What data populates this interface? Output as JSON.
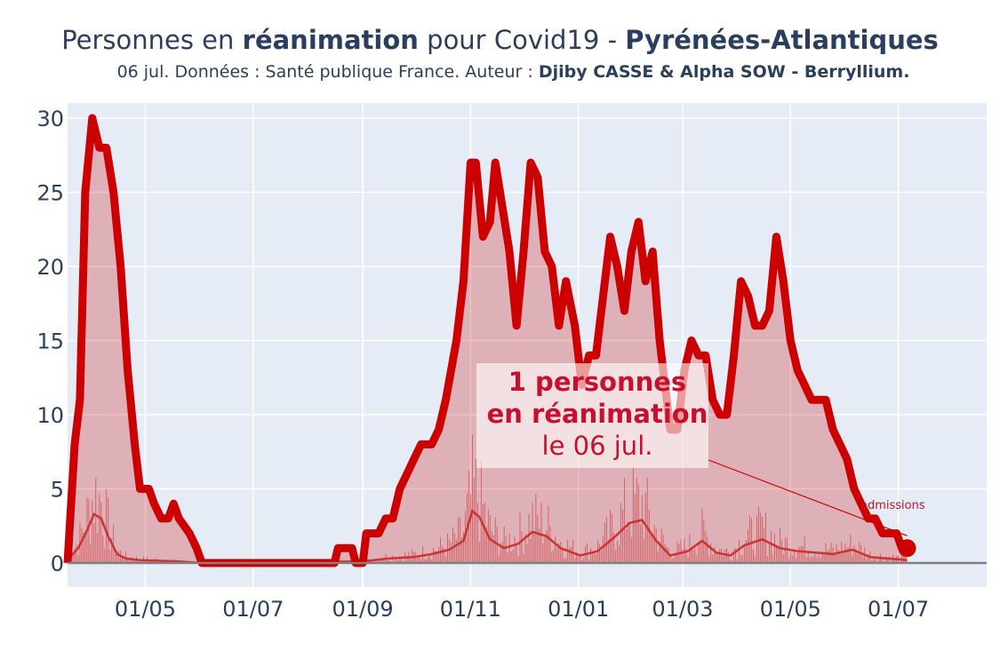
{
  "title": {
    "pre": "Personnes en ",
    "bold1": "réanimation",
    "mid": " pour Covid19 - ",
    "bold2": "Pyrénées-Atlantiques"
  },
  "subtitle": {
    "pre": "06 jul. Données : Santé publique France. Auteur : ",
    "bold": "Djiby CASSE & Alpha SOW - Berryllium."
  },
  "annotation": {
    "line1": "1 personnes",
    "line2": "en réanimation",
    "line3": "le 06 jul.",
    "admissions_label": "admissions"
  },
  "colors": {
    "plot_bg": "#e5ecf6",
    "line": "#cc0000",
    "fill": "rgba(204,0,0,0.25)",
    "admissions": "#cc3333",
    "grid": "#ffffff"
  },
  "chart_data": {
    "type": "area",
    "title": "Personnes en réanimation pour Covid19 - Pyrénées-Atlantiques",
    "xlabel": "",
    "ylabel": "",
    "ylim": [
      0,
      31
    ],
    "xlim": [
      "2020-03-18",
      "2021-08-20"
    ],
    "ytick_labels": [
      "0",
      "5",
      "10",
      "15",
      "20",
      "25",
      "30"
    ],
    "xtick_labels": [
      "01/05",
      "01/07",
      "01/09",
      "01/11",
      "01/01",
      "01/03",
      "01/05",
      "01/07"
    ],
    "xtick_dates": [
      "2020-05-01",
      "2020-07-01",
      "2020-09-01",
      "2020-11-01",
      "2021-01-01",
      "2021-03-01",
      "2021-05-01",
      "2021-07-01"
    ],
    "series": [
      {
        "name": "réanimation",
        "points": [
          [
            "2020-03-18",
            0
          ],
          [
            "2020-03-22",
            8
          ],
          [
            "2020-03-25",
            11
          ],
          [
            "2020-03-28",
            25
          ],
          [
            "2020-04-01",
            30
          ],
          [
            "2020-04-05",
            28
          ],
          [
            "2020-04-09",
            28
          ],
          [
            "2020-04-13",
            25
          ],
          [
            "2020-04-17",
            20
          ],
          [
            "2020-04-21",
            13
          ],
          [
            "2020-04-25",
            8
          ],
          [
            "2020-04-28",
            5
          ],
          [
            "2020-05-03",
            5
          ],
          [
            "2020-05-06",
            4
          ],
          [
            "2020-05-10",
            3
          ],
          [
            "2020-05-14",
            3
          ],
          [
            "2020-05-17",
            4
          ],
          [
            "2020-05-20",
            3
          ],
          [
            "2020-05-26",
            2
          ],
          [
            "2020-05-30",
            1
          ],
          [
            "2020-06-02",
            0
          ],
          [
            "2020-08-16",
            0
          ],
          [
            "2020-08-18",
            1
          ],
          [
            "2020-08-26",
            1
          ],
          [
            "2020-08-28",
            0
          ],
          [
            "2020-09-01",
            0
          ],
          [
            "2020-09-03",
            2
          ],
          [
            "2020-09-10",
            2
          ],
          [
            "2020-09-14",
            3
          ],
          [
            "2020-09-18",
            3
          ],
          [
            "2020-09-22",
            5
          ],
          [
            "2020-09-26",
            6
          ],
          [
            "2020-09-30",
            7
          ],
          [
            "2020-10-04",
            8
          ],
          [
            "2020-10-10",
            8
          ],
          [
            "2020-10-14",
            9
          ],
          [
            "2020-10-18",
            11
          ],
          [
            "2020-10-21",
            13
          ],
          [
            "2020-10-24",
            15
          ],
          [
            "2020-10-28",
            19
          ],
          [
            "2020-11-01",
            27
          ],
          [
            "2020-11-04",
            27
          ],
          [
            "2020-11-08",
            22
          ],
          [
            "2020-11-12",
            23
          ],
          [
            "2020-11-15",
            27
          ],
          [
            "2020-11-19",
            24
          ],
          [
            "2020-11-23",
            21
          ],
          [
            "2020-11-27",
            16
          ],
          [
            "2020-12-01",
            21
          ],
          [
            "2020-12-05",
            27
          ],
          [
            "2020-12-09",
            26
          ],
          [
            "2020-12-13",
            21
          ],
          [
            "2020-12-17",
            20
          ],
          [
            "2020-12-21",
            16
          ],
          [
            "2020-12-25",
            19
          ],
          [
            "2020-12-30",
            16
          ],
          [
            "2021-01-03",
            12
          ],
          [
            "2021-01-07",
            14
          ],
          [
            "2021-01-11",
            14
          ],
          [
            "2021-01-15",
            18
          ],
          [
            "2021-01-19",
            22
          ],
          [
            "2021-01-23",
            20
          ],
          [
            "2021-01-27",
            17
          ],
          [
            "2021-01-31",
            21
          ],
          [
            "2021-02-04",
            23
          ],
          [
            "2021-02-08",
            19
          ],
          [
            "2021-02-12",
            21
          ],
          [
            "2021-02-16",
            15
          ],
          [
            "2021-02-19",
            12
          ],
          [
            "2021-02-22",
            9
          ],
          [
            "2021-02-26",
            9
          ],
          [
            "2021-03-02",
            13
          ],
          [
            "2021-03-06",
            15
          ],
          [
            "2021-03-10",
            14
          ],
          [
            "2021-03-14",
            14
          ],
          [
            "2021-03-18",
            11
          ],
          [
            "2021-03-22",
            10
          ],
          [
            "2021-03-26",
            10
          ],
          [
            "2021-03-30",
            14
          ],
          [
            "2021-04-03",
            19
          ],
          [
            "2021-04-07",
            18
          ],
          [
            "2021-04-11",
            16
          ],
          [
            "2021-04-15",
            16
          ],
          [
            "2021-04-19",
            17
          ],
          [
            "2021-04-23",
            22
          ],
          [
            "2021-04-27",
            19
          ],
          [
            "2021-05-01",
            15
          ],
          [
            "2021-05-05",
            13
          ],
          [
            "2021-05-09",
            12
          ],
          [
            "2021-05-13",
            11
          ],
          [
            "2021-05-17",
            11
          ],
          [
            "2021-05-21",
            11
          ],
          [
            "2021-05-25",
            9
          ],
          [
            "2021-05-29",
            8
          ],
          [
            "2021-06-02",
            7
          ],
          [
            "2021-06-06",
            5
          ],
          [
            "2021-06-10",
            4
          ],
          [
            "2021-06-14",
            3
          ],
          [
            "2021-06-18",
            3
          ],
          [
            "2021-06-22",
            2
          ],
          [
            "2021-06-26",
            2
          ],
          [
            "2021-06-30",
            2
          ],
          [
            "2021-07-03",
            1
          ],
          [
            "2021-07-06",
            1
          ]
        ]
      },
      {
        "name": "admissions",
        "points": [
          [
            "2020-03-18",
            0.2
          ],
          [
            "2020-03-24",
            1.0
          ],
          [
            "2020-03-29",
            2.2
          ],
          [
            "2020-04-02",
            3.3
          ],
          [
            "2020-04-06",
            3.0
          ],
          [
            "2020-04-10",
            1.8
          ],
          [
            "2020-04-15",
            0.6
          ],
          [
            "2020-04-20",
            0.3
          ],
          [
            "2020-04-28",
            0.2
          ],
          [
            "2020-05-20",
            0.1
          ],
          [
            "2020-06-02",
            0.0
          ],
          [
            "2020-09-01",
            0.1
          ],
          [
            "2020-09-15",
            0.3
          ],
          [
            "2020-09-30",
            0.4
          ],
          [
            "2020-10-10",
            0.6
          ],
          [
            "2020-10-20",
            0.9
          ],
          [
            "2020-10-28",
            1.5
          ],
          [
            "2020-11-02",
            3.5
          ],
          [
            "2020-11-06",
            3.1
          ],
          [
            "2020-11-12",
            1.6
          ],
          [
            "2020-11-20",
            1.0
          ],
          [
            "2020-11-28",
            1.3
          ],
          [
            "2020-12-06",
            2.1
          ],
          [
            "2020-12-14",
            1.8
          ],
          [
            "2020-12-22",
            1.0
          ],
          [
            "2021-01-02",
            0.5
          ],
          [
            "2021-01-12",
            0.8
          ],
          [
            "2021-01-22",
            1.8
          ],
          [
            "2021-01-30",
            2.7
          ],
          [
            "2021-02-06",
            2.9
          ],
          [
            "2021-02-14",
            1.5
          ],
          [
            "2021-02-22",
            0.5
          ],
          [
            "2021-03-04",
            0.8
          ],
          [
            "2021-03-12",
            1.5
          ],
          [
            "2021-03-20",
            0.7
          ],
          [
            "2021-03-28",
            0.5
          ],
          [
            "2021-04-05",
            1.2
          ],
          [
            "2021-04-15",
            1.6
          ],
          [
            "2021-04-25",
            1.0
          ],
          [
            "2021-05-05",
            0.8
          ],
          [
            "2021-05-15",
            0.7
          ],
          [
            "2021-05-25",
            0.6
          ],
          [
            "2021-06-05",
            0.9
          ],
          [
            "2021-06-15",
            0.4
          ],
          [
            "2021-06-25",
            0.3
          ],
          [
            "2021-07-06",
            0.2
          ]
        ]
      }
    ],
    "last_point": {
      "date": "2021-07-06",
      "value": 1
    }
  }
}
